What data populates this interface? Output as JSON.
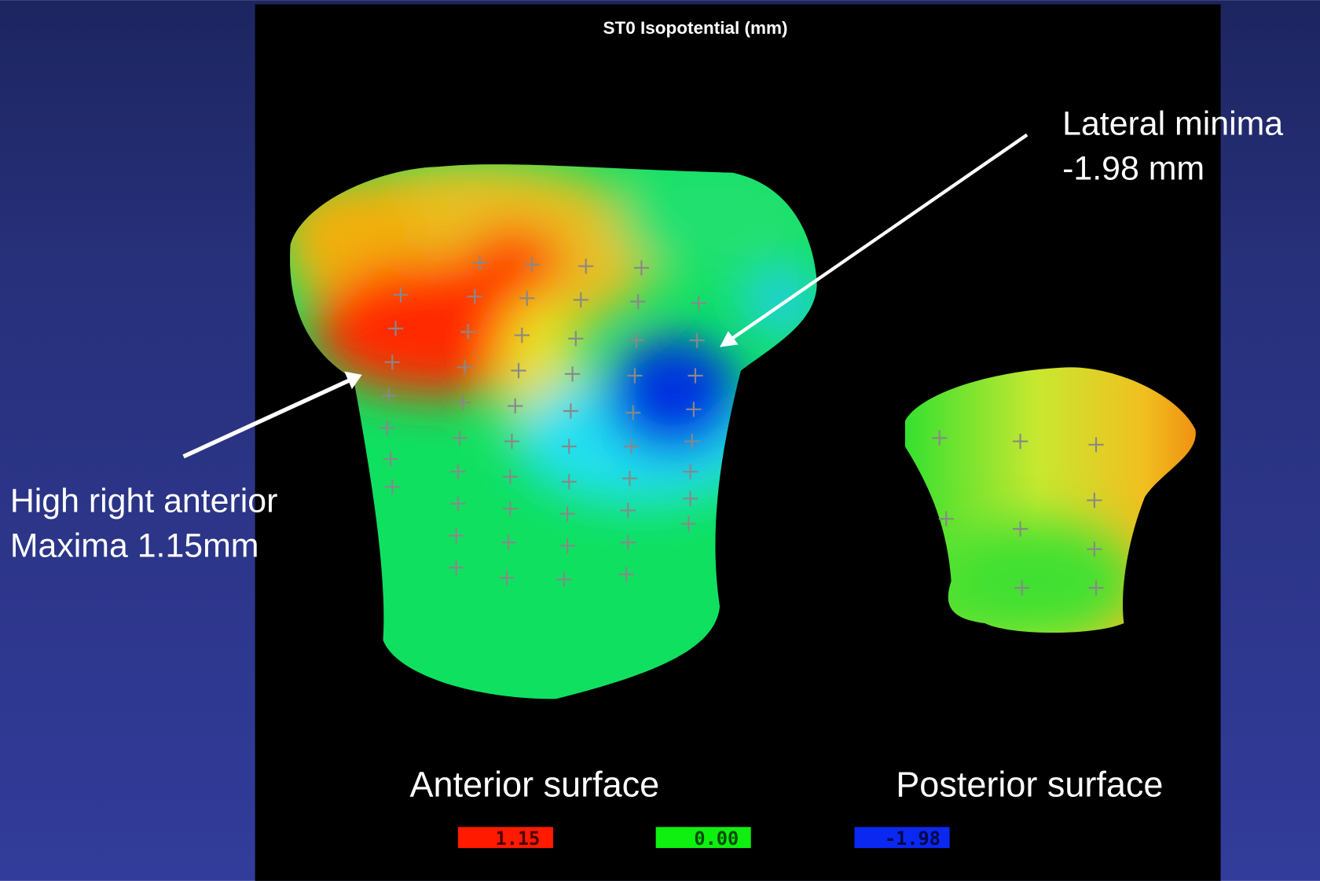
{
  "title": "ST0 Isopotential (mm)",
  "annotations": [
    {
      "lines": [
        "Lateral minima",
        "-1.98 mm"
      ]
    },
    {
      "lines": [
        "High right anterior",
        "Maxima 1.15mm"
      ]
    }
  ],
  "surface_labels": [
    "Anterior surface",
    "Posterior surface"
  ],
  "legend": [
    "1.15",
    "0.00",
    "-1.98"
  ]
}
